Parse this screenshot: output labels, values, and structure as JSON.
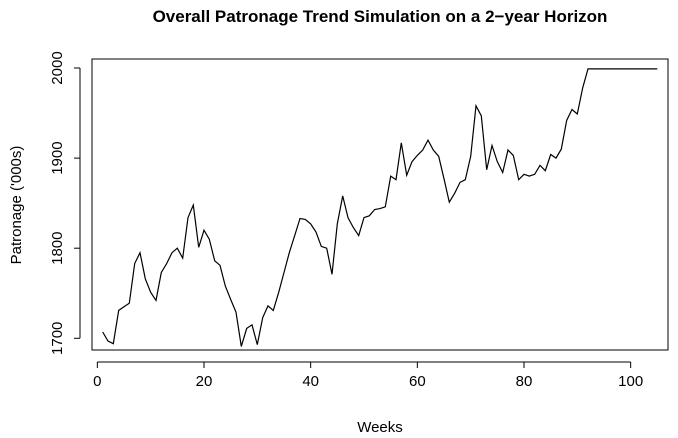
{
  "chart_data": {
    "type": "line",
    "title": "Overall Patronage Trend Simulation on a 2−year Horizon",
    "xlabel": "Weeks",
    "ylabel": "Patronage ('000s)",
    "xlim": [
      -1,
      107
    ],
    "ylim": [
      1687,
      2010
    ],
    "xticks": [
      "0",
      "20",
      "40",
      "60",
      "80",
      "100"
    ],
    "yticks": [
      "1700",
      "1800",
      "1900",
      "2000"
    ],
    "grid": false,
    "series": [
      {
        "x": [
          1,
          2,
          3,
          4,
          5,
          6,
          7,
          8,
          9,
          10,
          11,
          12,
          13,
          14,
          15,
          16,
          17,
          18,
          19,
          20,
          21,
          22,
          23,
          24,
          25,
          26,
          27,
          28,
          29,
          30,
          31,
          32,
          33,
          34,
          35,
          36,
          37,
          38,
          39,
          40,
          41,
          42,
          43,
          44,
          45,
          46,
          47,
          48,
          49,
          50,
          51,
          52,
          53,
          54,
          55,
          56,
          57,
          58,
          59,
          60,
          61,
          62,
          63,
          64,
          65,
          66,
          67,
          68,
          69,
          70,
          71,
          72,
          73,
          74,
          75,
          76,
          77,
          78,
          79,
          80,
          81,
          82,
          83,
          84,
          85,
          86,
          87,
          88,
          89,
          90,
          91,
          92,
          93,
          94,
          95,
          96,
          97,
          98,
          99,
          100,
          101,
          102,
          103,
          104,
          105
        ],
        "values": [
          1707,
          1697,
          1694,
          1731,
          1735,
          1739,
          1783,
          1795,
          1766,
          1751,
          1742,
          1773,
          1783,
          1795,
          1800,
          1789,
          1834,
          1848,
          1801,
          1820,
          1810,
          1786,
          1781,
          1758,
          1743,
          1729,
          1691,
          1711,
          1715,
          1693,
          1723,
          1736,
          1731,
          1751,
          1773,
          1795,
          1814,
          1833,
          1832,
          1827,
          1818,
          1802,
          1800,
          1771,
          1827,
          1858,
          1834,
          1823,
          1814,
          1834,
          1836,
          1843,
          1844,
          1846,
          1880,
          1876,
          1917,
          1881,
          1896,
          1903,
          1909,
          1920,
          1909,
          1902,
          1877,
          1851,
          1861,
          1873,
          1876,
          1902,
          1958,
          1947,
          1887,
          1914,
          1896,
          1884,
          1909,
          1903,
          1876,
          1882,
          1880,
          1882,
          1892,
          1886,
          1904,
          1900,
          1910,
          1942,
          1954,
          1949,
          1978,
          1999,
          1999,
          1999,
          1999,
          1999,
          1999,
          1999,
          1999,
          1999,
          1999,
          1999,
          1999,
          1999,
          1999
        ]
      }
    ]
  }
}
